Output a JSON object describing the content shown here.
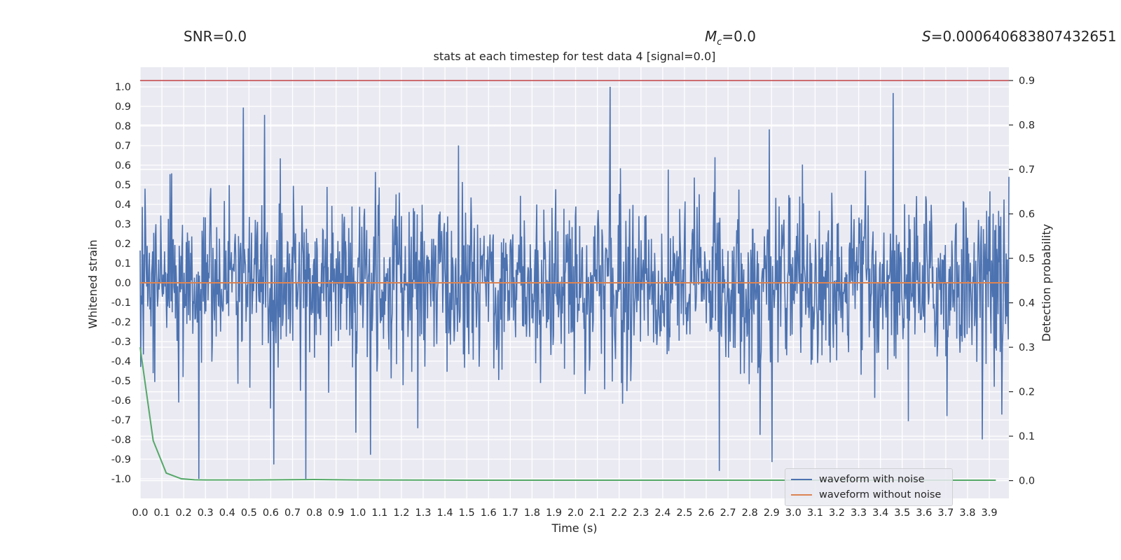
{
  "header": {
    "snr_text": "SNR=0.0",
    "mc_symbol": "M",
    "mc_sub": "c",
    "mc_value": "=0.0",
    "s_symbol": "S",
    "s_value": "=0.000640683807432651"
  },
  "chart_data": {
    "type": "line",
    "title": "stats at each timestep for test data 4 [signal=0.0]",
    "xlabel": "Time (s)",
    "ylabel": "Whitened strain",
    "ylabel_right": "Detection probability",
    "xlim": [
      0.0,
      3.99
    ],
    "ylim": [
      -1.1,
      1.1
    ],
    "ylim_right": [
      -0.04,
      0.93
    ],
    "grid": true,
    "legend_position": "bottom-right",
    "x_ticks": [
      "0.0",
      "0.1",
      "0.2",
      "0.3",
      "0.4",
      "0.5",
      "0.6",
      "0.7",
      "0.8",
      "0.9",
      "1.0",
      "1.1",
      "1.2",
      "1.3",
      "1.4",
      "1.5",
      "1.6",
      "1.7",
      "1.8",
      "1.9",
      "2.0",
      "2.1",
      "2.2",
      "2.3",
      "2.4",
      "2.5",
      "2.6",
      "2.7",
      "2.8",
      "2.9",
      "3.0",
      "3.1",
      "3.2",
      "3.3",
      "3.4",
      "3.5",
      "3.6",
      "3.7",
      "3.8",
      "3.9"
    ],
    "y_ticks": [
      "1.0",
      "0.9",
      "0.8",
      "0.7",
      "0.6",
      "0.5",
      "0.4",
      "0.3",
      "0.2",
      "0.1",
      "0.0",
      "-0.1",
      "-0.2",
      "-0.3",
      "-0.4",
      "-0.5",
      "-0.6",
      "-0.7",
      "-0.8",
      "-0.9",
      "-1.0"
    ],
    "y_ticks_right": [
      "0.9",
      "0.8",
      "0.7",
      "0.6",
      "0.5",
      "0.4",
      "0.3",
      "0.2",
      "0.1",
      "0.0"
    ],
    "threshold": {
      "value": 0.9,
      "axis": "right",
      "color": "#c44e52"
    },
    "series": [
      {
        "name": "waveform with noise",
        "color": "#4c72b0",
        "axis": "left",
        "noise": {
          "x_start": 0.0,
          "x_end": 3.99,
          "min": -1.0,
          "max": 1.0,
          "samples": 1600
        }
      },
      {
        "name": "waveform without noise",
        "color": "#dd8452",
        "axis": "left",
        "x": [
          0.0,
          3.99
        ],
        "y": [
          0.0,
          0.0
        ]
      },
      {
        "color": "#55a868",
        "axis": "right",
        "x": [
          0.0,
          0.06,
          0.12,
          0.19,
          0.25,
          0.3,
          0.5,
          0.8,
          1.0,
          1.5,
          2.0,
          2.5,
          3.0,
          3.5,
          3.93
        ],
        "y": [
          0.3,
          0.09,
          0.017,
          0.004,
          0.002,
          0.0015,
          0.0015,
          0.0025,
          0.0015,
          0.001,
          0.001,
          0.001,
          0.001,
          0.001,
          0.001
        ]
      }
    ]
  }
}
